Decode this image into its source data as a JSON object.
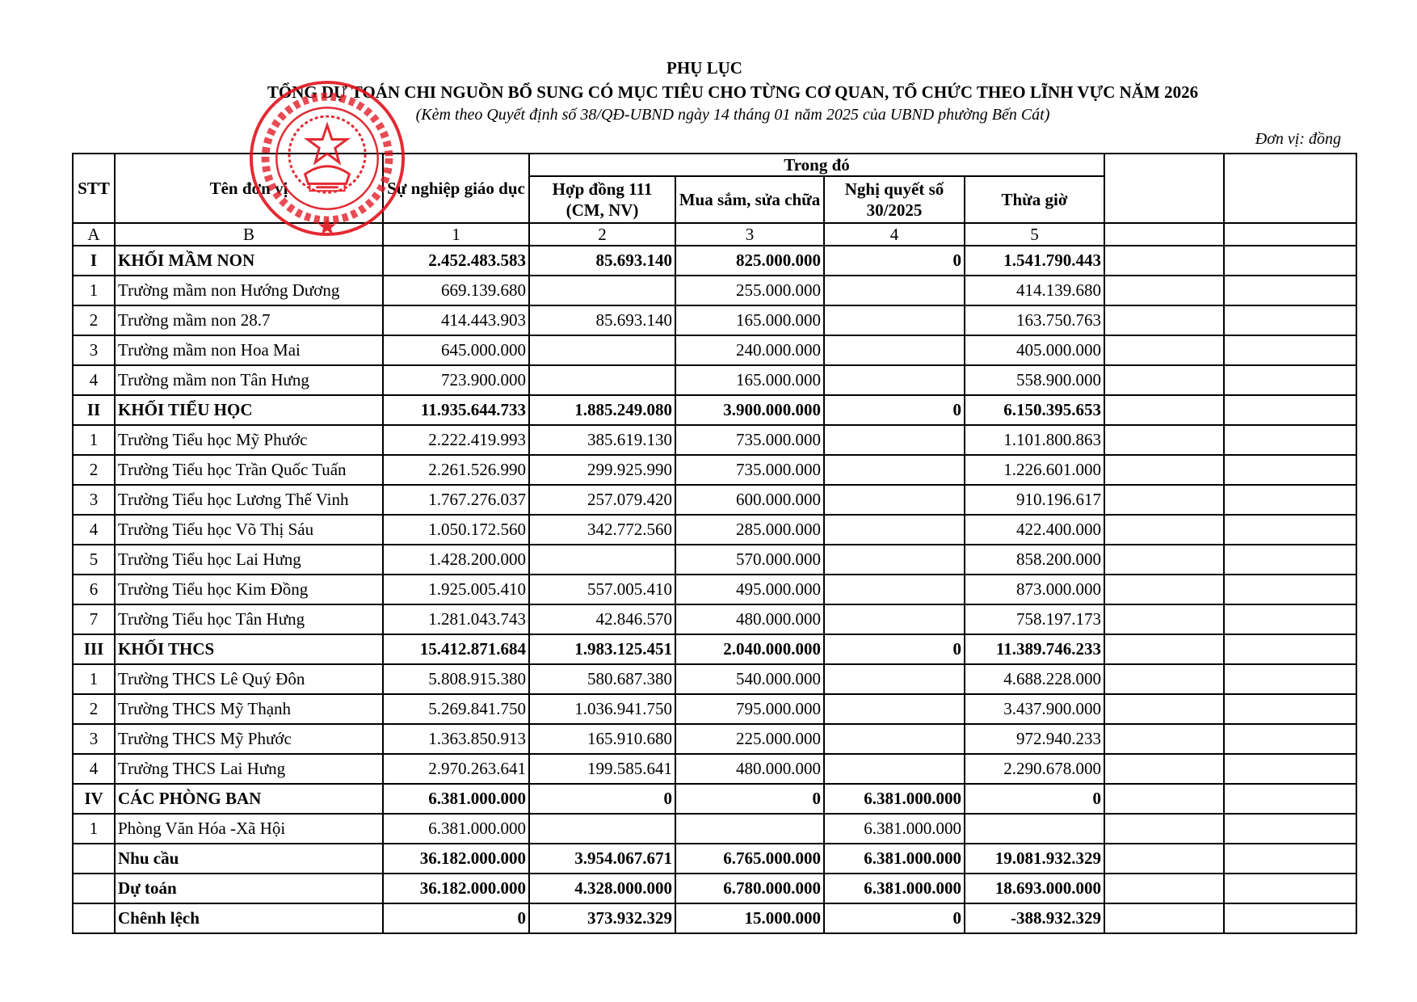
{
  "header": {
    "title": "PHỤ LỤC",
    "subtitle": "TỔNG DỰ TOÁN CHI NGUỒN BỔ SUNG CÓ MỤC TIÊU CHO TỪNG CƠ QUAN, TỔ CHỨC THEO LĨNH VỰC NĂM 2026",
    "note": "(Kèm theo Quyết định số 38/QĐ-UBND ngày 14 tháng 01 năm 2025 của UBND phường Bến Cát)",
    "unit": "Đơn vị: đồng"
  },
  "stamp": {
    "text": "U.B.N.D PHƯỜNG BẾN CÁT TP HỒ CHÍ MINH",
    "inner": "VIỆT NAM",
    "color": "#e0141e"
  },
  "table": {
    "headers": {
      "stt": "STT",
      "name": "Tên đơn vị",
      "col1": "Sự nghiệp giáo dục",
      "group": "Trong đó",
      "col2": "Hợp đồng 111 (CM, NV)",
      "col3": "Mua sắm, sửa chữa",
      "col4": "Nghị quyết số 30/2025",
      "col5": "Thừa giờ"
    },
    "index_row": [
      "A",
      "B",
      "1",
      "2",
      "3",
      "4",
      "5",
      "",
      ""
    ],
    "rows": [
      {
        "stt": "I",
        "name": "KHỐI MẦM NON",
        "v": [
          "2.452.483.583",
          "85.693.140",
          "825.000.000",
          "0",
          "1.541.790.443"
        ],
        "bold": true
      },
      {
        "stt": "1",
        "name": "Trường mầm non Hướng Dương",
        "v": [
          "669.139.680",
          "",
          "255.000.000",
          "",
          "414.139.680"
        ]
      },
      {
        "stt": "2",
        "name": "Trường mầm non 28.7",
        "v": [
          "414.443.903",
          "85.693.140",
          "165.000.000",
          "",
          "163.750.763"
        ]
      },
      {
        "stt": "3",
        "name": "Trường mầm non Hoa Mai",
        "v": [
          "645.000.000",
          "",
          "240.000.000",
          "",
          "405.000.000"
        ]
      },
      {
        "stt": "4",
        "name": "Trường mầm non Tân Hưng",
        "v": [
          "723.900.000",
          "",
          "165.000.000",
          "",
          "558.900.000"
        ]
      },
      {
        "stt": "II",
        "name": "KHỐI TIỂU HỌC",
        "v": [
          "11.935.644.733",
          "1.885.249.080",
          "3.900.000.000",
          "0",
          "6.150.395.653"
        ],
        "bold": true
      },
      {
        "stt": "1",
        "name": "Trường Tiểu học Mỹ Phước",
        "v": [
          "2.222.419.993",
          "385.619.130",
          "735.000.000",
          "",
          "1.101.800.863"
        ]
      },
      {
        "stt": "2",
        "name": "Trường Tiểu học Trần Quốc Tuấn",
        "v": [
          "2.261.526.990",
          "299.925.990",
          "735.000.000",
          "",
          "1.226.601.000"
        ]
      },
      {
        "stt": "3",
        "name": "Trường Tiểu học Lương Thế Vinh",
        "v": [
          "1.767.276.037",
          "257.079.420",
          "600.000.000",
          "",
          "910.196.617"
        ]
      },
      {
        "stt": "4",
        "name": "Trường Tiểu học Võ Thị Sáu",
        "v": [
          "1.050.172.560",
          "342.772.560",
          "285.000.000",
          "",
          "422.400.000"
        ]
      },
      {
        "stt": "5",
        "name": "Trường Tiểu học Lai Hưng",
        "v": [
          "1.428.200.000",
          "",
          "570.000.000",
          "",
          "858.200.000"
        ]
      },
      {
        "stt": "6",
        "name": "Trường Tiểu học Kim Đồng",
        "v": [
          "1.925.005.410",
          "557.005.410",
          "495.000.000",
          "",
          "873.000.000"
        ]
      },
      {
        "stt": "7",
        "name": "Trường Tiểu học Tân Hưng",
        "v": [
          "1.281.043.743",
          "42.846.570",
          "480.000.000",
          "",
          "758.197.173"
        ]
      },
      {
        "stt": "III",
        "name": "KHỐI THCS",
        "v": [
          "15.412.871.684",
          "1.983.125.451",
          "2.040.000.000",
          "0",
          "11.389.746.233"
        ],
        "bold": true
      },
      {
        "stt": "1",
        "name": "Trường THCS Lê Quý Đôn",
        "v": [
          "5.808.915.380",
          "580.687.380",
          "540.000.000",
          "",
          "4.688.228.000"
        ]
      },
      {
        "stt": "2",
        "name": "Trường THCS Mỹ Thạnh",
        "v": [
          "5.269.841.750",
          "1.036.941.750",
          "795.000.000",
          "",
          "3.437.900.000"
        ]
      },
      {
        "stt": "3",
        "name": "Trường THCS Mỹ Phước",
        "v": [
          "1.363.850.913",
          "165.910.680",
          "225.000.000",
          "",
          "972.940.233"
        ]
      },
      {
        "stt": "4",
        "name": "Trường THCS Lai Hưng",
        "v": [
          "2.970.263.641",
          "199.585.641",
          "480.000.000",
          "",
          "2.290.678.000"
        ]
      },
      {
        "stt": "IV",
        "name": "CÁC PHÒNG BAN",
        "v": [
          "6.381.000.000",
          "0",
          "0",
          "6.381.000.000",
          "0"
        ],
        "bold": true
      },
      {
        "stt": "1",
        "name": "Phòng Văn Hóa -Xã Hội",
        "v": [
          "6.381.000.000",
          "",
          "",
          "6.381.000.000",
          ""
        ]
      },
      {
        "stt": "",
        "name": "Nhu cầu",
        "v": [
          "36.182.000.000",
          "3.954.067.671",
          "6.765.000.000",
          "6.381.000.000",
          "19.081.932.329"
        ],
        "bold": true
      },
      {
        "stt": "",
        "name": "Dự toán",
        "v": [
          "36.182.000.000",
          "4.328.000.000",
          "6.780.000.000",
          "6.381.000.000",
          "18.693.000.000"
        ],
        "bold": true
      },
      {
        "stt": "",
        "name": "Chênh lệch",
        "v": [
          "0",
          "373.932.329",
          "15.000.000",
          "0",
          "-388.932.329"
        ],
        "bold": true
      }
    ]
  }
}
